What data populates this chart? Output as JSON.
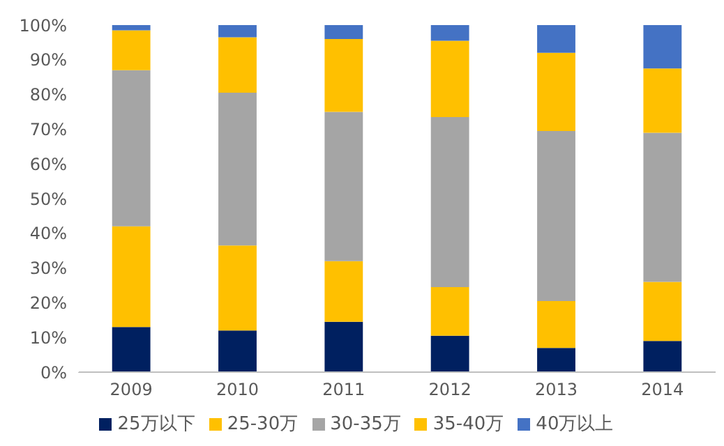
{
  "chart_data": {
    "type": "bar",
    "stacked": true,
    "categories": [
      "2009",
      "2010",
      "2011",
      "2012",
      "2013",
      "2014"
    ],
    "series": [
      {
        "name": "25万以下",
        "color": "#002060",
        "values": [
          13,
          12,
          14.5,
          10.5,
          7,
          9
        ]
      },
      {
        "name": "25-30万",
        "color": "#ffc000",
        "values": [
          29,
          24.5,
          17.5,
          14,
          13.5,
          17
        ]
      },
      {
        "name": "30-35万",
        "color": "#a5a5a5",
        "values": [
          45,
          44,
          43,
          49,
          49,
          43
        ]
      },
      {
        "name": "35-40万",
        "color": "#ffc000",
        "values": [
          11.5,
          16,
          21,
          22,
          22.5,
          18.5
        ]
      },
      {
        "name": "40万以上",
        "color": "#4472c4",
        "values": [
          1.5,
          3.5,
          4,
          4.5,
          8,
          12.5
        ]
      }
    ],
    "ylim": [
      0,
      100
    ],
    "yticks": [
      {
        "value": 0,
        "label": "0%"
      },
      {
        "value": 10,
        "label": "10%"
      },
      {
        "value": 20,
        "label": "20%"
      },
      {
        "value": 30,
        "label": "30%"
      },
      {
        "value": 40,
        "label": "40%"
      },
      {
        "value": 50,
        "label": "50%"
      },
      {
        "value": 60,
        "label": "60%"
      },
      {
        "value": 70,
        "label": "70%"
      },
      {
        "value": 80,
        "label": "80%"
      },
      {
        "value": 90,
        "label": "90%"
      },
      {
        "value": 100,
        "label": "100%"
      }
    ],
    "grid": false,
    "legend": "bottom"
  }
}
